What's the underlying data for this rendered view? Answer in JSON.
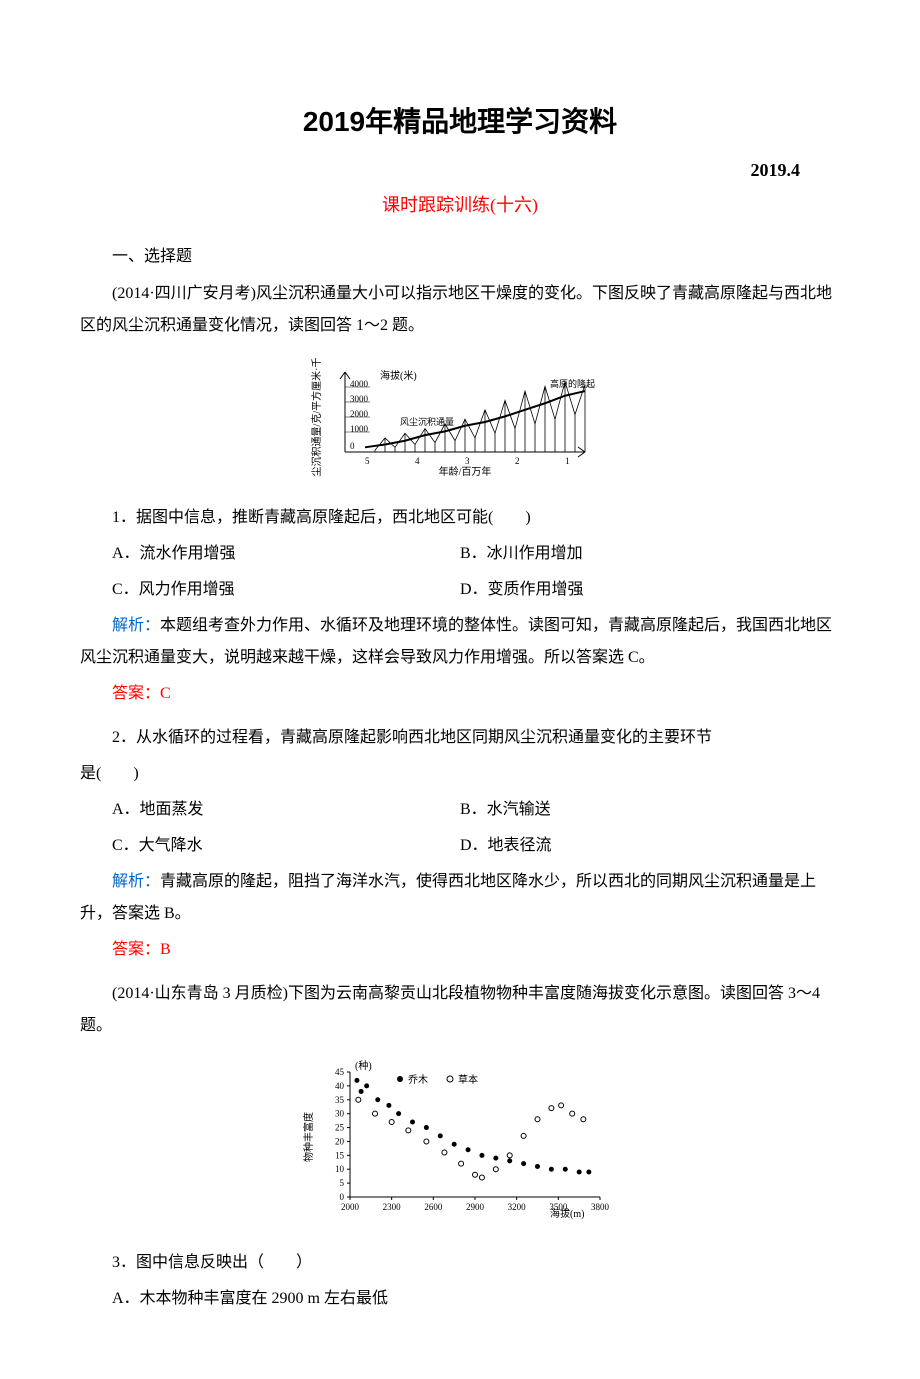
{
  "header": {
    "main_title": "2019年精品地理学习资料",
    "date": "2019.4",
    "subtitle": "课时跟踪训练(十六)"
  },
  "section1_label": "一、选择题",
  "intro1": "(2014·四川广安月考)风尘沉积通量大小可以指示地区干燥度的变化。下图反映了青藏高原隆起与西北地区的风尘沉积通量变化情况，读图回答 1～2 题。",
  "chart1": {
    "type": "line",
    "y_left_label": "风尘沉积通量/克/平方厘米·千年",
    "y_right_label": "海拔(米)",
    "y_right_ticks": [
      "4000",
      "3000",
      "2000",
      "1000",
      "0"
    ],
    "x_label": "年龄/百万年",
    "x_ticks": [
      "5",
      "4",
      "3",
      "2",
      "1"
    ],
    "legend_top": "海拔(米)",
    "legend_mid": "风尘沉积通量",
    "right_annotation": "高原的隆起",
    "colors": {
      "axis": "#000000",
      "text": "#000000",
      "bg": "#ffffff"
    },
    "series1_points": [
      [
        0,
        5
      ],
      [
        20,
        8
      ],
      [
        40,
        12
      ],
      [
        60,
        18
      ],
      [
        80,
        22
      ],
      [
        100,
        28
      ],
      [
        120,
        32
      ],
      [
        140,
        38
      ],
      [
        160,
        45
      ],
      [
        180,
        52
      ],
      [
        200,
        60
      ],
      [
        220,
        65
      ]
    ],
    "series2_spikes": [
      [
        10,
        2
      ],
      [
        20,
        15
      ],
      [
        30,
        5
      ],
      [
        40,
        20
      ],
      [
        50,
        8
      ],
      [
        60,
        25
      ],
      [
        70,
        10
      ],
      [
        80,
        30
      ],
      [
        90,
        12
      ],
      [
        100,
        35
      ],
      [
        110,
        15
      ],
      [
        120,
        45
      ],
      [
        130,
        20
      ],
      [
        140,
        55
      ],
      [
        150,
        25
      ],
      [
        160,
        65
      ],
      [
        170,
        30
      ],
      [
        180,
        70
      ],
      [
        190,
        35
      ],
      [
        200,
        75
      ],
      [
        210,
        40
      ],
      [
        220,
        72
      ]
    ]
  },
  "q1": {
    "stem": "1．据图中信息，推断青藏高原隆起后，西北地区可能(　　)",
    "optA": "A．流水作用增强",
    "optB": "B．冰川作用增加",
    "optC": "C．风力作用增强",
    "optD": "D．变质作用增强",
    "analysis_label": "解析：",
    "analysis": "本题组考查外力作用、水循环及地理环境的整体性。读图可知，青藏高原隆起后，我国西北地区风尘沉积通量变大，说明越来越干燥，这样会导致风力作用增强。所以答案选 C。",
    "answer": "答案：C"
  },
  "q2": {
    "stem_p1": "2．从水循环的过程看，青藏高原隆起影响西北地区同期风尘沉积通量变化的主要环节",
    "stem_p2": "是(　　)",
    "optA": "A．地面蒸发",
    "optB": "B．水汽输送",
    "optC": "C．大气降水",
    "optD": "D．地表径流",
    "analysis_label": "解析：",
    "analysis": "青藏高原的隆起，阻挡了海洋水汽，使得西北地区降水少，所以西北的同期风尘沉积通量是上升，答案选 B。",
    "answer": "答案：B"
  },
  "intro2": "(2014·山东青岛 3 月质检)下图为云南高黎贡山北段植物物种丰富度随海拔变化示意图。读图回答 3～4 题。",
  "chart2": {
    "type": "scatter",
    "y_label": "物种丰富度",
    "y_unit": "(种)",
    "y_ticks": [
      "45",
      "40",
      "35",
      "30",
      "25",
      "20",
      "15",
      "10",
      "5",
      "0"
    ],
    "x_label": "海拔(m)",
    "x_ticks": [
      "2000",
      "2300",
      "2600",
      "2900",
      "3200",
      "3500",
      "3800"
    ],
    "legend": {
      "filled": "乔木",
      "hollow": "草本"
    },
    "colors": {
      "marker_fill": "#000000",
      "marker_hollow_stroke": "#000000",
      "axis": "#000000",
      "bg": "#ffffff"
    },
    "data_filled": [
      [
        2050,
        42
      ],
      [
        2120,
        40
      ],
      [
        2080,
        38
      ],
      [
        2200,
        35
      ],
      [
        2280,
        33
      ],
      [
        2350,
        30
      ],
      [
        2450,
        27
      ],
      [
        2550,
        25
      ],
      [
        2650,
        22
      ],
      [
        2750,
        19
      ],
      [
        2850,
        17
      ],
      [
        2950,
        15
      ],
      [
        3050,
        14
      ],
      [
        3150,
        13
      ],
      [
        3250,
        12
      ],
      [
        3350,
        11
      ],
      [
        3450,
        10
      ],
      [
        3550,
        10
      ],
      [
        3650,
        9
      ],
      [
        3720,
        9
      ]
    ],
    "data_hollow": [
      [
        2060,
        35
      ],
      [
        2180,
        30
      ],
      [
        2300,
        27
      ],
      [
        2420,
        24
      ],
      [
        2550,
        20
      ],
      [
        2680,
        16
      ],
      [
        2800,
        12
      ],
      [
        2900,
        8
      ],
      [
        2950,
        7
      ],
      [
        3050,
        10
      ],
      [
        3150,
        15
      ],
      [
        3250,
        22
      ],
      [
        3350,
        28
      ],
      [
        3450,
        32
      ],
      [
        3520,
        33
      ],
      [
        3600,
        30
      ],
      [
        3680,
        28
      ]
    ]
  },
  "q3": {
    "stem": "3．图中信息反映出（　　）",
    "optA": "A．木本物种丰富度在 2900 m 左右最低"
  }
}
